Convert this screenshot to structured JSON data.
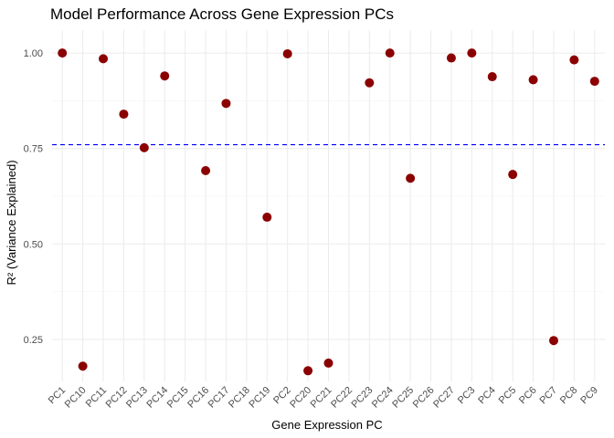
{
  "chart_data": {
    "type": "scatter",
    "title": "Model Performance Across Gene Expression PCs",
    "xlabel": "Gene Expression PC",
    "ylabel": "R² (Variance Explained)",
    "categories": [
      "PC1",
      "PC10",
      "PC11",
      "PC12",
      "PC13",
      "PC14",
      "PC15",
      "PC16",
      "PC17",
      "PC18",
      "PC19",
      "PC2",
      "PC20",
      "PC21",
      "PC22",
      "PC23",
      "PC24",
      "PC25",
      "PC26",
      "PC27",
      "PC3",
      "PC4",
      "PC5",
      "PC6",
      "PC7",
      "PC8",
      "PC9"
    ],
    "values": [
      1.0,
      0.18,
      0.985,
      0.84,
      0.752,
      0.94,
      null,
      0.692,
      0.868,
      null,
      0.57,
      0.998,
      0.168,
      0.188,
      null,
      0.922,
      1.0,
      0.672,
      null,
      0.987,
      1.0,
      0.938,
      0.682,
      0.93,
      0.247,
      0.982,
      0.926
    ],
    "yticks": [
      0.25,
      0.5,
      0.75,
      1.0
    ],
    "ytick_labels": [
      "0.25",
      "0.50",
      "0.75",
      "1.00"
    ],
    "ylim": [
      0.14,
      1.06
    ],
    "reference_line": {
      "value": 0.76,
      "style": "dashed",
      "color": "#0000ff"
    },
    "point_color": "#8b0000",
    "grid": true,
    "legend": "none"
  }
}
